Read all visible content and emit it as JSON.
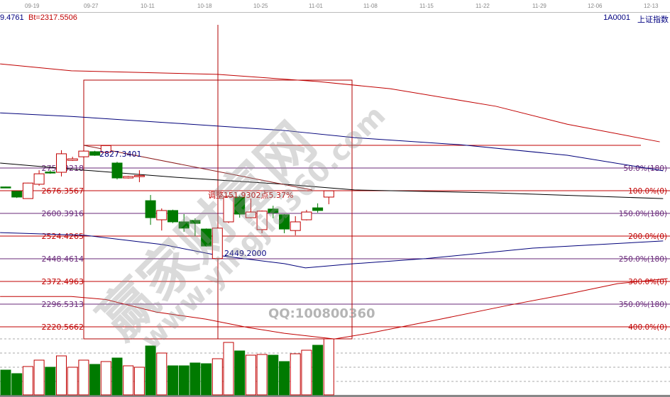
{
  "header": {
    "left_value": "9.4761",
    "bt_label": "Bt=2317.5506",
    "code": "1A0001",
    "name": "上证指数"
  },
  "watermark": {
    "cn": "赢家财富网",
    "url": "www.yingjia360.com",
    "qq": "QQ:100800360"
  },
  "colors": {
    "up": "#c00000",
    "down": "#007a00",
    "fib_180": "#6a2a7a",
    "fib_0": "#c00000",
    "ma_blue": "#00007a",
    "ma_red": "#c00000",
    "ma_black": "#000000"
  },
  "chart_data": {
    "type": "candlestick",
    "x_ticks": [
      "09-19",
      "09-27",
      "10-11",
      "10-18",
      "10-25",
      "11-01",
      "11-08",
      "11-15",
      "11-22",
      "11-29",
      "12-06",
      "12-13"
    ],
    "candles": [
      [
        2689,
        2690,
        2686,
        2687
      ],
      [
        2674,
        2676,
        2652,
        2655
      ],
      [
        2650,
        2703,
        2649,
        2702
      ],
      [
        2698,
        2745,
        2693,
        2733
      ],
      [
        2739,
        2745,
        2733,
        2737
      ],
      [
        2738,
        2812,
        2724,
        2800
      ],
      [
        2778,
        2790,
        2776,
        2783
      ],
      [
        2790,
        2812,
        2788,
        2809
      ],
      [
        2807,
        2810,
        2793,
        2795
      ],
      [
        2805,
        2827.34,
        2803,
        2827.34
      ],
      [
        2769,
        2773,
        2714,
        2719
      ],
      [
        2719,
        2726,
        2717,
        2724
      ],
      [
        2725,
        2745,
        2705,
        2727
      ],
      [
        2643,
        2662,
        2562,
        2586
      ],
      [
        2579,
        2617,
        2543,
        2610
      ],
      [
        2610,
        2613,
        2568,
        2572
      ],
      [
        2572,
        2598,
        2539,
        2551
      ],
      [
        2577,
        2584,
        2524,
        2567
      ],
      [
        2548,
        2550,
        2489,
        2491
      ],
      [
        2449.2,
        2553,
        2449.2,
        2551
      ],
      [
        2572,
        2660,
        2568,
        2657
      ],
      [
        2655,
        2660,
        2586,
        2598
      ],
      [
        2586,
        2650,
        2584,
        2605
      ],
      [
        2546,
        2610,
        2534,
        2608
      ],
      [
        2615,
        2626,
        2584,
        2603
      ],
      [
        2596,
        2598,
        2534,
        2548
      ],
      [
        2543,
        2591,
        2527,
        2572
      ],
      [
        2579,
        2612,
        2577,
        2605
      ],
      [
        2619,
        2634,
        2603,
        2610
      ],
      [
        2655,
        2676,
        2631,
        2676
      ]
    ],
    "volume": [
      35,
      30,
      40,
      49,
      39,
      55,
      39,
      49,
      43,
      47,
      52,
      41,
      39,
      69,
      59,
      41,
      41,
      45,
      44,
      51,
      74,
      62,
      56,
      57,
      56,
      47,
      58,
      63,
      70,
      79
    ],
    "moving_averages": [
      {
        "color": "#c00000",
        "points": [
          [
            -0.5,
            3101
          ],
          [
            5.9,
            3078
          ],
          [
            19,
            3066
          ],
          [
            28,
            3042
          ],
          [
            34.5,
            3018
          ],
          [
            44,
            2959
          ],
          [
            50.4,
            2899
          ],
          [
            58.7,
            2840
          ]
        ]
      },
      {
        "color": "#00007a",
        "points": [
          [
            -0.5,
            2937
          ],
          [
            5.9,
            2925
          ],
          [
            15.4,
            2902
          ],
          [
            25,
            2878
          ],
          [
            31.3,
            2854
          ],
          [
            40.9,
            2830
          ],
          [
            50.4,
            2795
          ],
          [
            59,
            2743
          ]
        ]
      },
      {
        "color": "#000000",
        "points": [
          [
            -0.5,
            2769
          ],
          [
            7.1,
            2745
          ],
          [
            15.4,
            2721
          ],
          [
            25,
            2698
          ],
          [
            31.3,
            2679
          ],
          [
            44,
            2669
          ],
          [
            59,
            2650
          ]
        ]
      },
      {
        "color": "#00007a",
        "points": [
          [
            -0.5,
            2536
          ],
          [
            7.1,
            2527
          ],
          [
            14.1,
            2496
          ],
          [
            19,
            2460
          ],
          [
            25,
            2432
          ],
          [
            26.9,
            2418
          ],
          [
            31.3,
            2432
          ],
          [
            37.7,
            2449
          ],
          [
            47.3,
            2484
          ],
          [
            59,
            2508
          ]
        ]
      },
      {
        "color": "#c00000",
        "points": [
          [
            -0.5,
            2322
          ],
          [
            5.9,
            2322
          ],
          [
            9,
            2312
          ],
          [
            13.5,
            2270
          ],
          [
            18,
            2246
          ],
          [
            21.8,
            2218
          ],
          [
            25,
            2199
          ],
          [
            29.5,
            2180
          ],
          [
            32.6,
            2199
          ],
          [
            39,
            2246
          ],
          [
            45.3,
            2294
          ],
          [
            50.4,
            2330
          ],
          [
            54.9,
            2365
          ],
          [
            59.4,
            2382
          ]
        ]
      }
    ],
    "fib": {
      "top_price": 2828.29,
      "high_label": "2827.3401",
      "low_label": "2449.2000",
      "adjust_label": "调整151.9302点5.37%",
      "levels": [
        {
          "price": 2752.3218,
          "left": "2752.3218",
          "right": "50.0%(180)",
          "kind": "180"
        },
        {
          "price": 2676.3567,
          "left": "2676.3567",
          "right": "100.0%(0)",
          "kind": "0"
        },
        {
          "price": 2600.3916,
          "left": "2600.3916",
          "right": "150.0%(180)",
          "kind": "180"
        },
        {
          "price": 2524.4265,
          "left": "2524.4265",
          "right": "200.0%(0)",
          "kind": "0"
        },
        {
          "price": 2448.4614,
          "left": "2448.4614",
          "right": "250.0%(180)",
          "kind": "180"
        },
        {
          "price": 2372.4963,
          "left": "2372.4963",
          "right": "300.0%(0)",
          "kind": "0"
        },
        {
          "price": 2296.5313,
          "left": "2296.5313",
          "right": "350.0%(180)",
          "kind": "180"
        },
        {
          "price": 2220.5662,
          "left": "2220.5662",
          "right": "400.0%(0)",
          "kind": "0"
        }
      ]
    }
  }
}
